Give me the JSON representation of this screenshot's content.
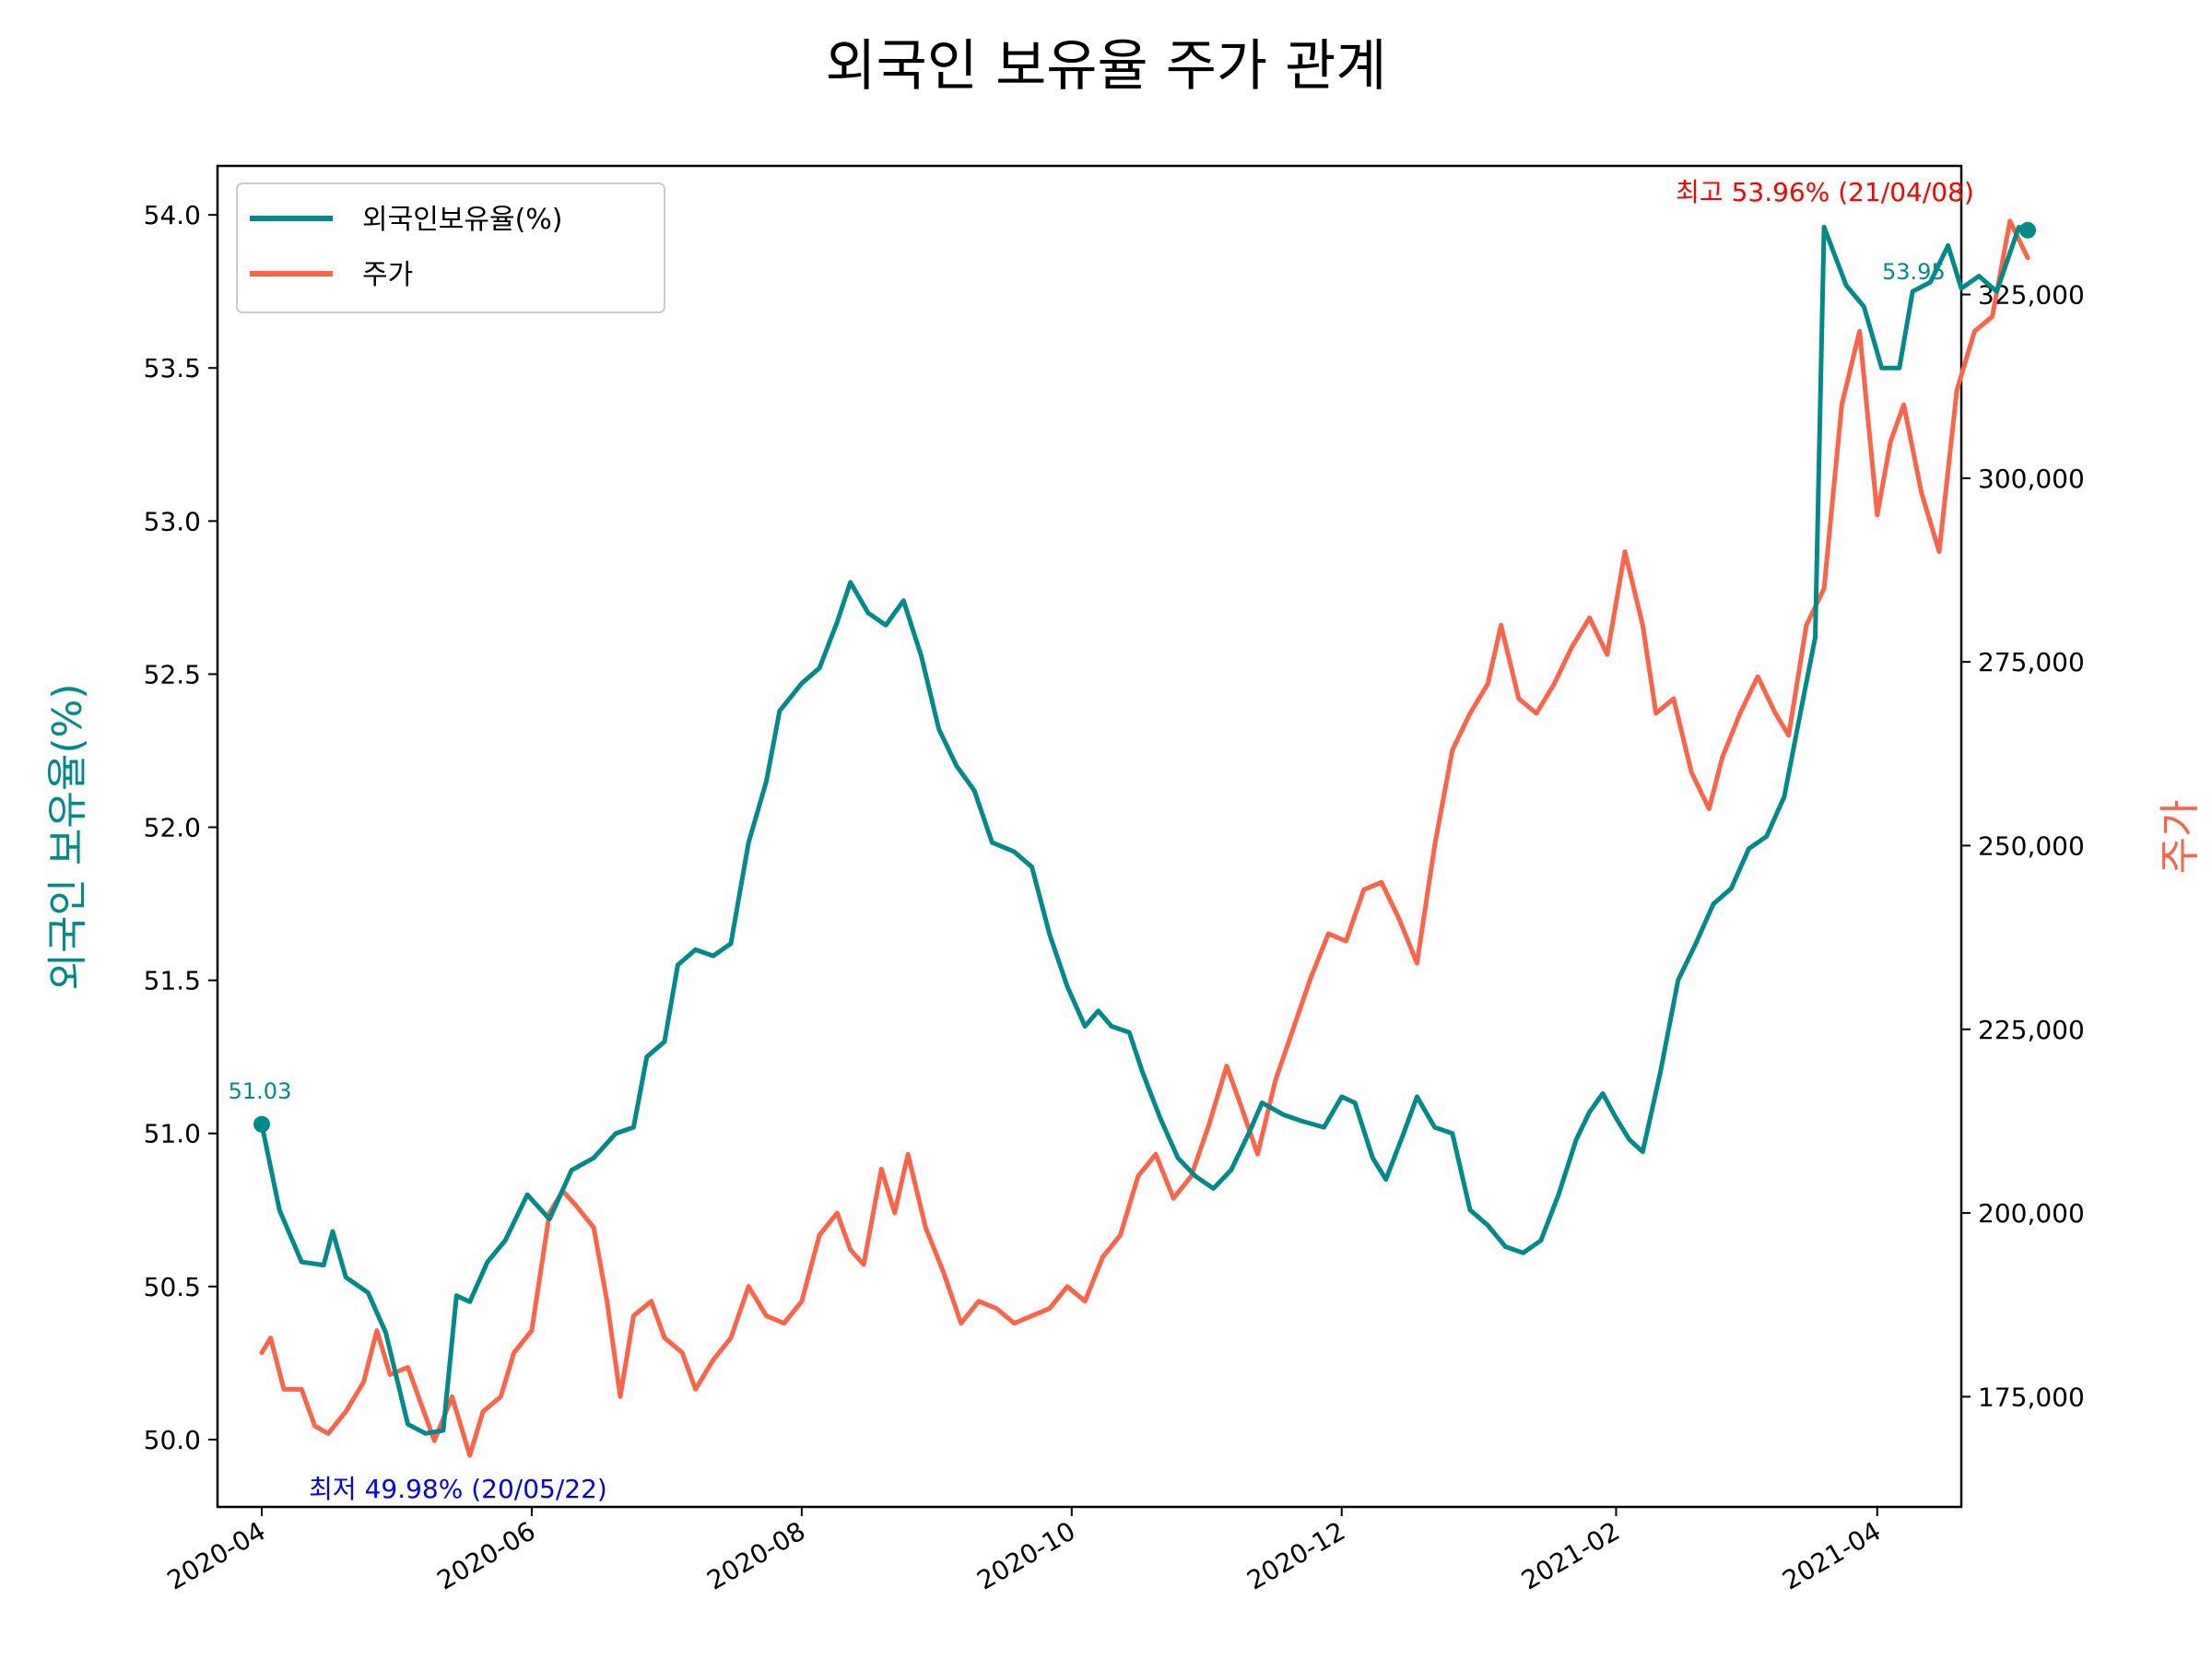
{
  "title": "외국인 보유율 주가 관계",
  "chart_data": {
    "type": "line",
    "title": "외국인 보유율 주가 관계",
    "xaxis": {
      "ticks": [
        "2020-04",
        "2020-06",
        "2020-08",
        "2020-10",
        "2020-12",
        "2021-02",
        "2021-04"
      ],
      "range": [
        "2020-03-22",
        "2021-04-20"
      ]
    },
    "y_left": {
      "label": "외국인 보유율(%)",
      "range": [
        49.78,
        54.16
      ],
      "ticks": [
        "50.0",
        "50.5",
        "51.0",
        "51.5",
        "52.0",
        "52.5",
        "53.0",
        "53.5",
        "54.0"
      ]
    },
    "y_right": {
      "label": "주가",
      "range": [
        160000,
        342500
      ],
      "ticks": [
        "175,000",
        "200,000",
        "225,000",
        "250,000",
        "275,000",
        "300,000",
        "325,000"
      ]
    },
    "series": [
      {
        "name": "외국인보유율(%)",
        "axis": "left",
        "color": "#008b8b",
        "points": [
          [
            "2020-04-01",
            51.03
          ],
          [
            "2020-04-05",
            50.75
          ],
          [
            "2020-04-10",
            50.58
          ],
          [
            "2020-04-15",
            50.57
          ],
          [
            "2020-04-17",
            50.68
          ],
          [
            "2020-04-20",
            50.53
          ],
          [
            "2020-04-25",
            50.48
          ],
          [
            "2020-04-29",
            50.35
          ],
          [
            "2020-05-04",
            50.05
          ],
          [
            "2020-05-08",
            50.02
          ],
          [
            "2020-05-12",
            50.03
          ],
          [
            "2020-05-15",
            50.47
          ],
          [
            "2020-05-18",
            50.45
          ],
          [
            "2020-05-22",
            50.58
          ],
          [
            "2020-05-26",
            50.65
          ],
          [
            "2020-05-31",
            50.8
          ],
          [
            "2020-06-05",
            50.72
          ],
          [
            "2020-06-10",
            50.88
          ],
          [
            "2020-06-15",
            50.92
          ],
          [
            "2020-06-20",
            51.0
          ],
          [
            "2020-06-24",
            51.02
          ],
          [
            "2020-06-27",
            51.25
          ],
          [
            "2020-07-01",
            51.3
          ],
          [
            "2020-07-04",
            51.55
          ],
          [
            "2020-07-08",
            51.6
          ],
          [
            "2020-07-12",
            51.58
          ],
          [
            "2020-07-16",
            51.62
          ],
          [
            "2020-07-20",
            51.95
          ],
          [
            "2020-07-24",
            52.15
          ],
          [
            "2020-07-27",
            52.38
          ],
          [
            "2020-08-01",
            52.47
          ],
          [
            "2020-08-05",
            52.52
          ],
          [
            "2020-08-09",
            52.67
          ],
          [
            "2020-08-12",
            52.8
          ],
          [
            "2020-08-16",
            52.7
          ],
          [
            "2020-08-20",
            52.66
          ],
          [
            "2020-08-24",
            52.74
          ],
          [
            "2020-08-28",
            52.56
          ],
          [
            "2020-09-01",
            52.32
          ],
          [
            "2020-09-05",
            52.2
          ],
          [
            "2020-09-09",
            52.12
          ],
          [
            "2020-09-13",
            51.95
          ],
          [
            "2020-09-18",
            51.92
          ],
          [
            "2020-09-22",
            51.87
          ],
          [
            "2020-09-26",
            51.65
          ],
          [
            "2020-09-30",
            51.48
          ],
          [
            "2020-10-04",
            51.35
          ],
          [
            "2020-10-07",
            51.4
          ],
          [
            "2020-10-10",
            51.35
          ],
          [
            "2020-10-14",
            51.33
          ],
          [
            "2020-10-17",
            51.2
          ],
          [
            "2020-10-21",
            51.05
          ],
          [
            "2020-10-25",
            50.92
          ],
          [
            "2020-10-29",
            50.86
          ],
          [
            "2020-11-02",
            50.82
          ],
          [
            "2020-11-06",
            50.88
          ],
          [
            "2020-11-10",
            51.0
          ],
          [
            "2020-11-13",
            51.1
          ],
          [
            "2020-11-18",
            51.06
          ],
          [
            "2020-11-22",
            51.04
          ],
          [
            "2020-11-27",
            51.02
          ],
          [
            "2020-12-01",
            51.12
          ],
          [
            "2020-12-04",
            51.1
          ],
          [
            "2020-12-08",
            50.92
          ],
          [
            "2020-12-11",
            50.85
          ],
          [
            "2020-12-15",
            51.0
          ],
          [
            "2020-12-18",
            51.12
          ],
          [
            "2020-12-22",
            51.02
          ],
          [
            "2020-12-26",
            51.0
          ],
          [
            "2020-12-30",
            50.75
          ],
          [
            "2021-01-03",
            50.7
          ],
          [
            "2021-01-07",
            50.63
          ],
          [
            "2021-01-11",
            50.61
          ],
          [
            "2021-01-15",
            50.65
          ],
          [
            "2021-01-19",
            50.8
          ],
          [
            "2021-01-23",
            50.98
          ],
          [
            "2021-01-26",
            51.07
          ],
          [
            "2021-01-29",
            51.13
          ],
          [
            "2021-02-01",
            51.05
          ],
          [
            "2021-02-04",
            50.98
          ],
          [
            "2021-02-07",
            50.94
          ],
          [
            "2021-02-11",
            51.2
          ],
          [
            "2021-02-15",
            51.5
          ],
          [
            "2021-02-19",
            51.62
          ],
          [
            "2021-02-23",
            51.75
          ],
          [
            "2021-02-27",
            51.8
          ],
          [
            "2021-03-03",
            51.93
          ],
          [
            "2021-03-07",
            51.97
          ],
          [
            "2021-03-11",
            52.1
          ],
          [
            "2021-03-15",
            52.4
          ],
          [
            "2021-03-18",
            52.62
          ],
          [
            "2021-03-20",
            53.96
          ],
          [
            "2021-03-25",
            53.77
          ],
          [
            "2021-03-29",
            53.7
          ],
          [
            "2021-04-02",
            53.5
          ],
          [
            "2021-04-06",
            53.5
          ],
          [
            "2021-04-09",
            53.75
          ],
          [
            "2021-04-13",
            53.78
          ],
          [
            "2021-04-17",
            53.9
          ],
          [
            "2021-04-20",
            53.76
          ],
          [
            "2021-04-24",
            53.8
          ],
          [
            "2021-04-28",
            53.75
          ],
          [
            "2021-05-03",
            53.96
          ],
          [
            "2021-05-05",
            53.95
          ]
        ]
      },
      {
        "name": "주가",
        "axis": "right",
        "color": "#ff6347",
        "points": [
          [
            "2020-04-01",
            181000
          ],
          [
            "2020-04-03",
            183000
          ],
          [
            "2020-04-06",
            176000
          ],
          [
            "2020-04-10",
            176000
          ],
          [
            "2020-04-13",
            171000
          ],
          [
            "2020-04-16",
            170000
          ],
          [
            "2020-04-20",
            173000
          ],
          [
            "2020-04-24",
            177000
          ],
          [
            "2020-04-27",
            184000
          ],
          [
            "2020-04-30",
            178000
          ],
          [
            "2020-05-04",
            179000
          ],
          [
            "2020-05-07",
            174000
          ],
          [
            "2020-05-10",
            169000
          ],
          [
            "2020-05-14",
            175000
          ],
          [
            "2020-05-18",
            167000
          ],
          [
            "2020-05-21",
            173000
          ],
          [
            "2020-05-25",
            175000
          ],
          [
            "2020-05-28",
            181000
          ],
          [
            "2020-06-01",
            184000
          ],
          [
            "2020-06-05",
            200000
          ],
          [
            "2020-06-08",
            203000
          ],
          [
            "2020-06-11",
            201000
          ],
          [
            "2020-06-15",
            198000
          ],
          [
            "2020-06-18",
            188000
          ],
          [
            "2020-06-21",
            175000
          ],
          [
            "2020-06-24",
            186000
          ],
          [
            "2020-06-28",
            188000
          ],
          [
            "2020-07-01",
            183000
          ],
          [
            "2020-07-05",
            181000
          ],
          [
            "2020-07-08",
            176000
          ],
          [
            "2020-07-12",
            180000
          ],
          [
            "2020-07-16",
            183000
          ],
          [
            "2020-07-20",
            190000
          ],
          [
            "2020-07-24",
            186000
          ],
          [
            "2020-07-28",
            185000
          ],
          [
            "2020-08-01",
            188000
          ],
          [
            "2020-08-05",
            197000
          ],
          [
            "2020-08-09",
            200000
          ],
          [
            "2020-08-12",
            195000
          ],
          [
            "2020-08-15",
            193000
          ],
          [
            "2020-08-19",
            206000
          ],
          [
            "2020-08-22",
            200000
          ],
          [
            "2020-08-25",
            208000
          ],
          [
            "2020-08-29",
            198000
          ],
          [
            "2020-09-02",
            192000
          ],
          [
            "2020-09-06",
            185000
          ],
          [
            "2020-09-10",
            188000
          ],
          [
            "2020-09-14",
            187000
          ],
          [
            "2020-09-18",
            185000
          ],
          [
            "2020-09-22",
            186000
          ],
          [
            "2020-09-26",
            187000
          ],
          [
            "2020-09-30",
            190000
          ],
          [
            "2020-10-04",
            188000
          ],
          [
            "2020-10-08",
            194000
          ],
          [
            "2020-10-12",
            197000
          ],
          [
            "2020-10-16",
            205000
          ],
          [
            "2020-10-20",
            208000
          ],
          [
            "2020-10-24",
            202000
          ],
          [
            "2020-10-28",
            205000
          ],
          [
            "2020-11-01",
            212000
          ],
          [
            "2020-11-05",
            220000
          ],
          [
            "2020-11-08",
            215000
          ],
          [
            "2020-11-12",
            208000
          ],
          [
            "2020-11-16",
            218000
          ],
          [
            "2020-11-20",
            225000
          ],
          [
            "2020-11-24",
            232000
          ],
          [
            "2020-11-28",
            238000
          ],
          [
            "2020-12-02",
            237000
          ],
          [
            "2020-12-06",
            244000
          ],
          [
            "2020-12-10",
            245000
          ],
          [
            "2020-12-14",
            240000
          ],
          [
            "2020-12-18",
            234000
          ],
          [
            "2020-12-22",
            250000
          ],
          [
            "2020-12-26",
            263000
          ],
          [
            "2020-12-30",
            268000
          ],
          [
            "2021-01-03",
            272000
          ],
          [
            "2021-01-06",
            280000
          ],
          [
            "2021-01-10",
            270000
          ],
          [
            "2021-01-14",
            268000
          ],
          [
            "2021-01-18",
            272000
          ],
          [
            "2021-01-22",
            277000
          ],
          [
            "2021-01-26",
            281000
          ],
          [
            "2021-01-30",
            276000
          ],
          [
            "2021-02-03",
            290000
          ],
          [
            "2021-02-07",
            280000
          ],
          [
            "2021-02-10",
            268000
          ],
          [
            "2021-02-14",
            270000
          ],
          [
            "2021-02-18",
            260000
          ],
          [
            "2021-02-22",
            255000
          ],
          [
            "2021-02-25",
            262000
          ],
          [
            "2021-03-01",
            268000
          ],
          [
            "2021-03-05",
            273000
          ],
          [
            "2021-03-09",
            268000
          ],
          [
            "2021-03-12",
            265000
          ],
          [
            "2021-03-16",
            280000
          ],
          [
            "2021-03-20",
            285000
          ],
          [
            "2021-03-24",
            310000
          ],
          [
            "2021-03-28",
            320000
          ],
          [
            "2021-04-01",
            295000
          ],
          [
            "2021-04-04",
            305000
          ],
          [
            "2021-04-07",
            310000
          ],
          [
            "2021-04-11",
            298000
          ],
          [
            "2021-04-15",
            290000
          ],
          [
            "2021-04-19",
            312000
          ],
          [
            "2021-04-23",
            320000
          ],
          [
            "2021-04-27",
            322000
          ],
          [
            "2021-05-01",
            335000
          ],
          [
            "2021-05-05",
            330000
          ]
        ]
      }
    ],
    "legend": {
      "position": "top-left",
      "entries": [
        "외국인보유율(%)",
        "주가"
      ]
    },
    "annotations": {
      "start": {
        "text": "51.03",
        "x": "2020-04-01",
        "y": 51.03
      },
      "end": {
        "text": "53.95",
        "x": "2021-04-08",
        "y": 53.95
      },
      "max": {
        "text": "최고 53.96% (21/04/08)"
      },
      "min": {
        "text": "최저 49.98% (20/05/22)"
      }
    },
    "grid": false
  }
}
